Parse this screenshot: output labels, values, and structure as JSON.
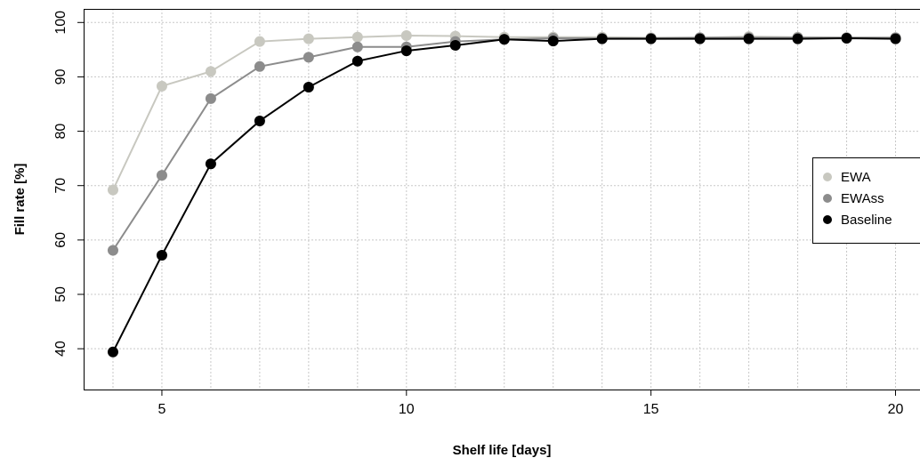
{
  "chart_data": {
    "type": "line",
    "xlabel": "Shelf life [days]",
    "ylabel": "Fill rate [%]",
    "xlim": [
      3.4,
      20.5
    ],
    "ylim": [
      32.5,
      102.5
    ],
    "x_ticks": [
      5,
      10,
      15,
      20
    ],
    "y_ticks": [
      40,
      50,
      60,
      70,
      80,
      90,
      100
    ],
    "grid": true,
    "legend_position": "right",
    "x": [
      4,
      5,
      6,
      7,
      8,
      9,
      10,
      11,
      12,
      13,
      14,
      15,
      16,
      17,
      18,
      19,
      20
    ],
    "series": [
      {
        "name": "EWA",
        "color": "#c8c8c0",
        "values": [
          69.2,
          88.3,
          91.0,
          96.5,
          97.0,
          97.3,
          97.6,
          97.5,
          97.3,
          97.3,
          97.3,
          97.2,
          97.2,
          97.4,
          97.3,
          97.2,
          97.2
        ]
      },
      {
        "name": "EWAss",
        "color": "#8c8c8c",
        "values": [
          58.1,
          71.9,
          86.0,
          91.9,
          93.6,
          95.5,
          95.5,
          96.5,
          96.9,
          97.1,
          97.1,
          97.1,
          97.2,
          97.2,
          97.2,
          97.2,
          97.2
        ]
      },
      {
        "name": "Baseline",
        "color": "#000000",
        "values": [
          39.4,
          57.2,
          74.0,
          81.9,
          88.1,
          92.9,
          94.8,
          95.8,
          96.9,
          96.6,
          97.0,
          97.0,
          97.0,
          97.0,
          97.0,
          97.1,
          97.0
        ]
      }
    ]
  }
}
